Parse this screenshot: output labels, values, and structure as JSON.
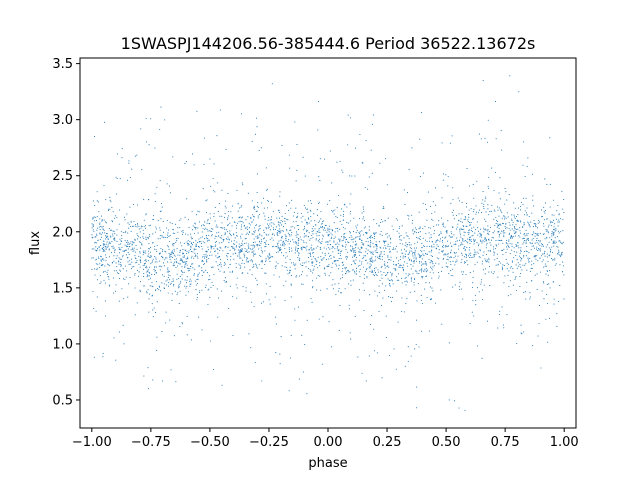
{
  "chart_data": {
    "type": "scatter",
    "title": "1SWASPJ144206.56-385444.6 Period 36522.13672s",
    "xlabel": "phase",
    "ylabel": "flux",
    "xlim": [
      -1.05,
      1.05
    ],
    "ylim": [
      0.25,
      3.55
    ],
    "xticks": [
      -1.0,
      -0.75,
      -0.5,
      -0.25,
      0.0,
      0.25,
      0.5,
      0.75,
      1.0
    ],
    "xtick_labels": [
      "−1.00",
      "−0.75",
      "−0.50",
      "−0.25",
      "0.00",
      "0.25",
      "0.50",
      "0.75",
      "1.00"
    ],
    "yticks": [
      0.5,
      1.0,
      1.5,
      2.0,
      2.5,
      3.0,
      3.5
    ],
    "ytick_labels": [
      "0.5",
      "1.0",
      "1.5",
      "2.0",
      "2.5",
      "3.0",
      "3.5"
    ],
    "grid": false,
    "marker_color": "#1f77b4",
    "series": [
      {
        "phase_range": [
          -1.0,
          1.0
        ],
        "flux_range": [
          0.4,
          3.4
        ],
        "profile_phase": [
          -1.0,
          -0.9,
          -0.8,
          -0.7,
          -0.6,
          -0.5,
          -0.4,
          -0.3,
          -0.2,
          -0.1,
          0.0,
          0.1,
          0.2,
          0.3,
          0.4,
          0.5,
          0.6,
          0.7,
          0.8,
          0.9,
          1.0
        ],
        "profile_median_flux": [
          1.92,
          1.88,
          1.82,
          1.76,
          1.78,
          1.85,
          1.9,
          1.93,
          1.92,
          1.9,
          1.88,
          1.84,
          1.8,
          1.76,
          1.78,
          1.85,
          1.9,
          1.93,
          1.92,
          1.9,
          1.92
        ]
      }
    ]
  }
}
